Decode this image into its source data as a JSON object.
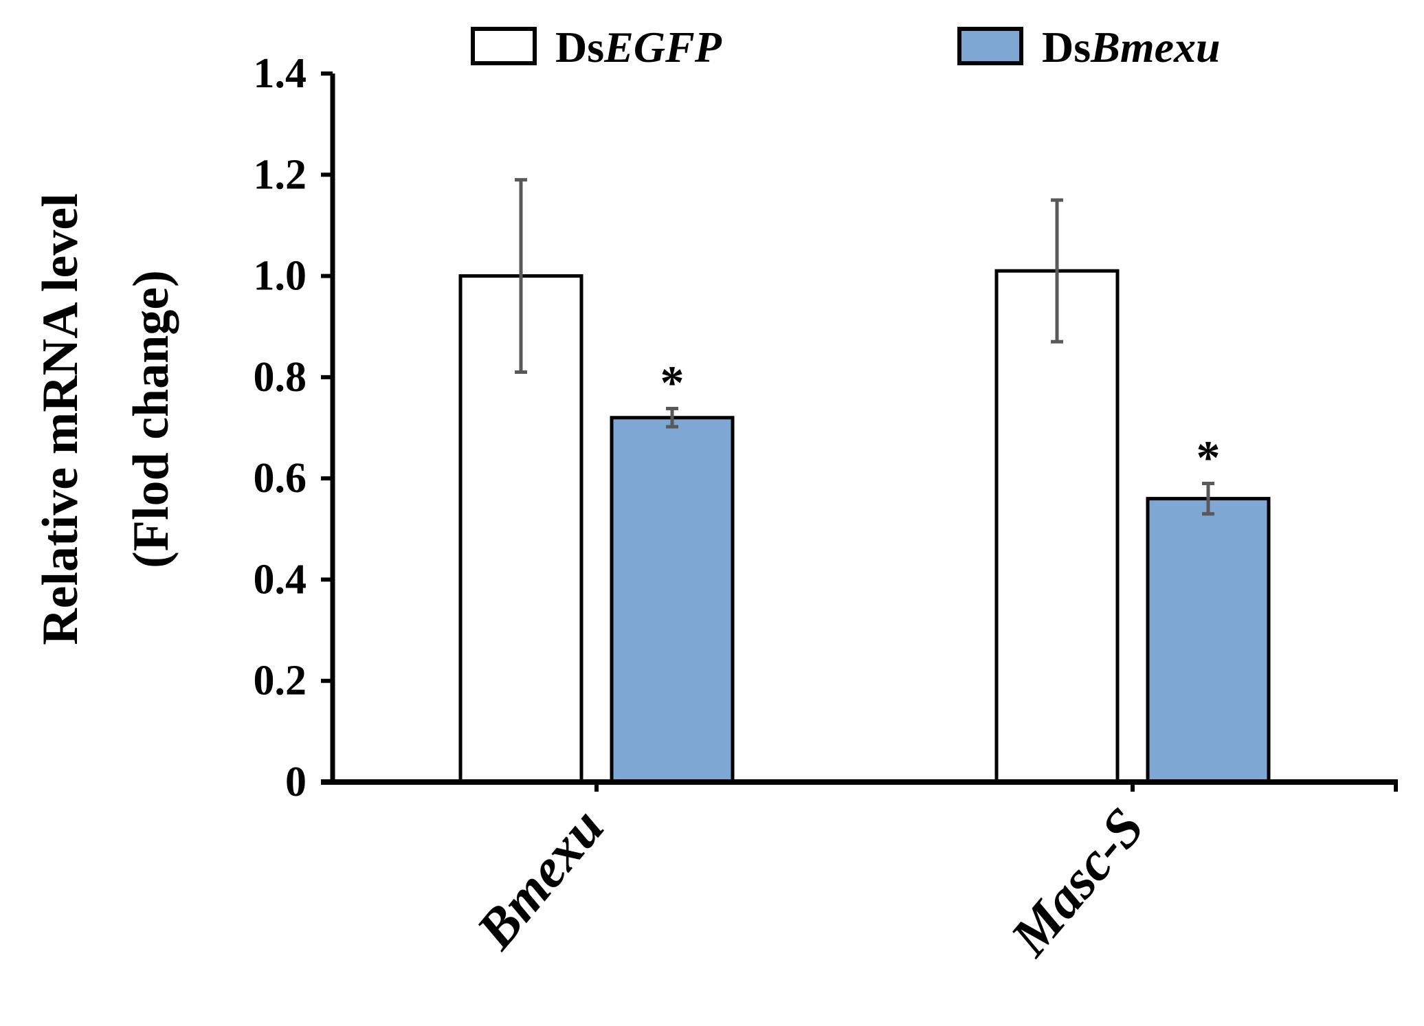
{
  "chart_data": {
    "type": "bar",
    "title": "",
    "ylabel_line1": "Relative mRNA level",
    "ylabel_line2": "(Flod change)",
    "xlabel": "",
    "ylim": [
      0,
      1.4
    ],
    "yticks": [
      0,
      0.2,
      0.4,
      0.6,
      0.8,
      1.0,
      1.2,
      1.4
    ],
    "ytick_labels": [
      "0",
      "0.2",
      "0.4",
      "0.6",
      "0.8",
      "1.0",
      "1.2",
      "1.4"
    ],
    "categories": [
      "Bmexu",
      "Masc-S"
    ],
    "series": [
      {
        "name_prefix": "Ds",
        "name_italic": "EGFP",
        "color": "#ffffff",
        "values": [
          1.0,
          1.01
        ],
        "errors": [
          0.19,
          0.14
        ],
        "significance": [
          "",
          ""
        ]
      },
      {
        "name_prefix": "Ds",
        "name_italic": "Bmexu",
        "color": "#7fa7d4",
        "values": [
          0.72,
          0.56
        ],
        "errors": [
          0.018,
          0.03
        ],
        "significance": [
          "*",
          "*"
        ]
      }
    ],
    "legend_position": "top",
    "grid": false,
    "error_bar_color": "#595959"
  }
}
